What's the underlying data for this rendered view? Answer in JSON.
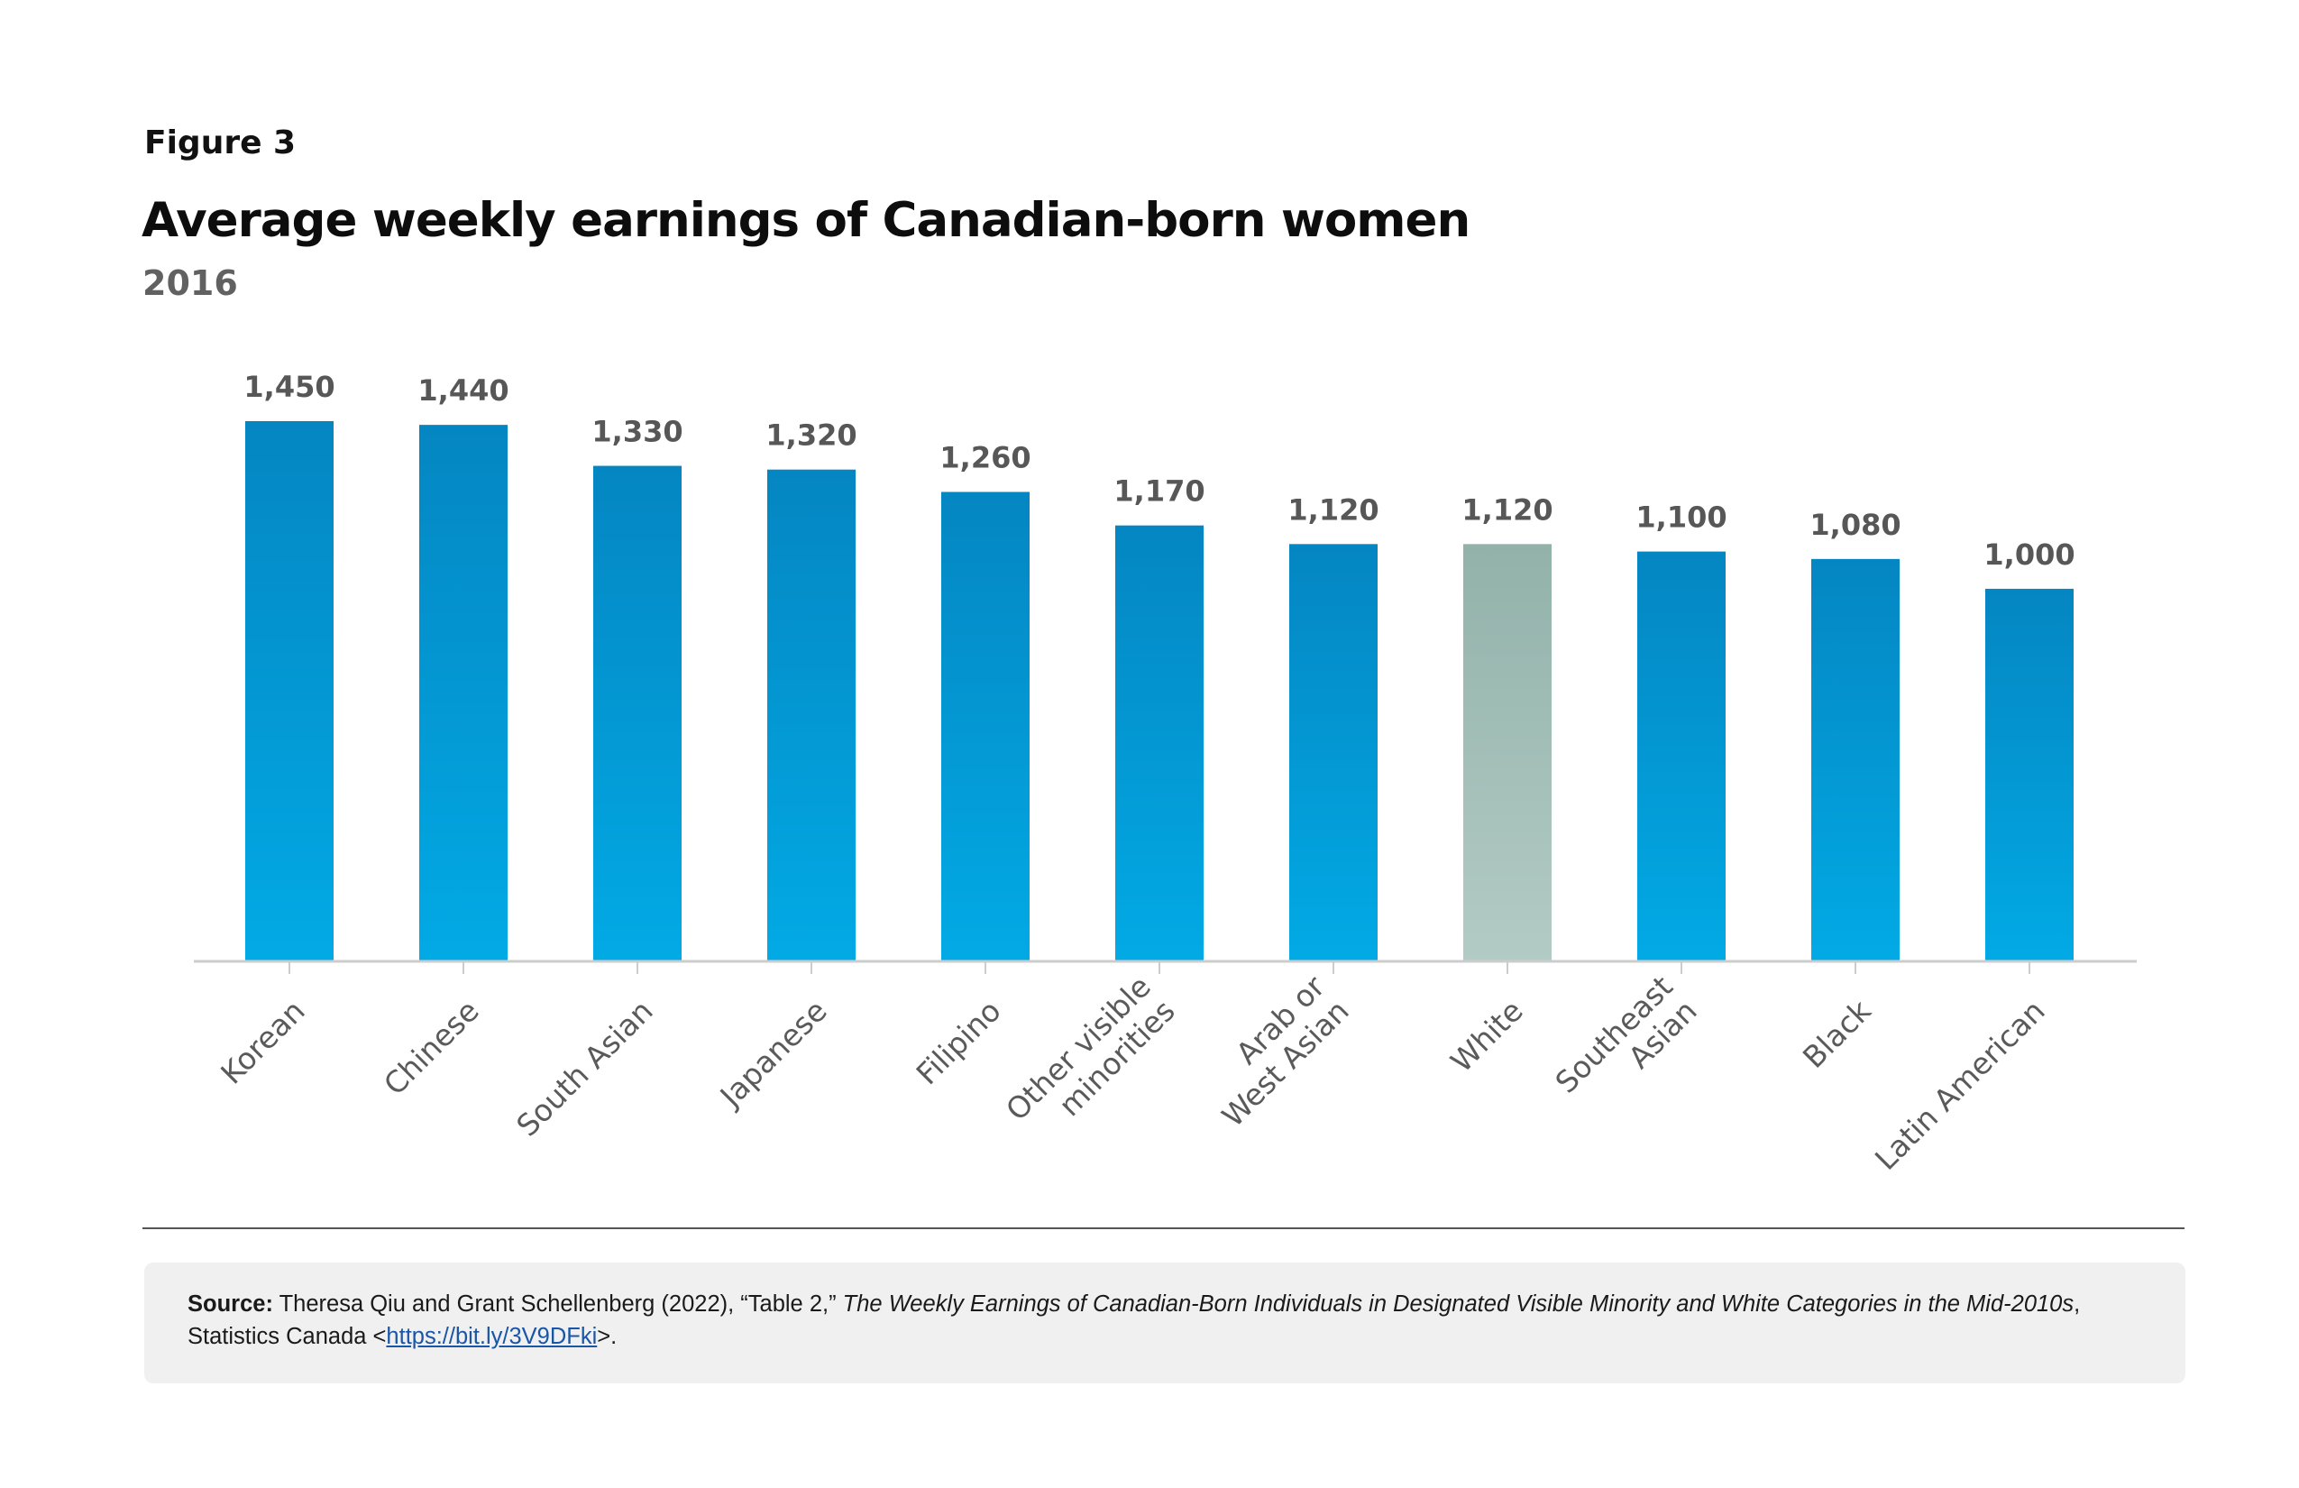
{
  "figure_label": "Figure 3",
  "source": {
    "prefix": "Source:",
    "text_before": " Theresa Qiu and Grant Schellenberg (2022), “Table 2,” ",
    "publication": "The Weekly Earnings of Canadian-Born Individuals in Designated Visible Minority and White Categories in the Mid-2010s",
    "text_after": ", Statistics Canada <",
    "link_text": "https://bit.ly/3V9DFki",
    "text_end": ">."
  },
  "colors": {
    "bar_top": "#0486c2",
    "bar_bottom": "#02aae5",
    "highlight_top": "#92b2aa",
    "highlight_bottom": "#b3cbc5",
    "axis": "#cccccc"
  },
  "chart_data": {
    "type": "bar",
    "title": "Average weekly earnings of Canadian-born women",
    "subtitle": "2016",
    "xlabel": "",
    "ylabel": "",
    "ylim": [
      0,
      1450
    ],
    "grid": false,
    "categories": [
      "Korean",
      "Chinese",
      "South Asian",
      "Japanese",
      "Filipino",
      "Other visible minorities",
      "Arab or West Asian",
      "White",
      "Southeast Asian",
      "Black",
      "Latin American"
    ],
    "category_lines": [
      [
        "Korean"
      ],
      [
        "Chinese"
      ],
      [
        "South Asian"
      ],
      [
        "Japanese"
      ],
      [
        "Filipino"
      ],
      [
        "Other visible",
        "minorities"
      ],
      [
        "Arab or",
        "West Asian"
      ],
      [
        "White"
      ],
      [
        "Southeast",
        "Asian"
      ],
      [
        "Black"
      ],
      [
        "Latin American"
      ]
    ],
    "values": [
      1450,
      1440,
      1330,
      1320,
      1260,
      1170,
      1120,
      1120,
      1100,
      1080,
      1000
    ],
    "data_labels": [
      "1,450",
      "1,440",
      "1,330",
      "1,320",
      "1,260",
      "1,170",
      "1,120",
      "1,120",
      "1,100",
      "1,080",
      "1,000"
    ],
    "highlight_category": "White"
  }
}
